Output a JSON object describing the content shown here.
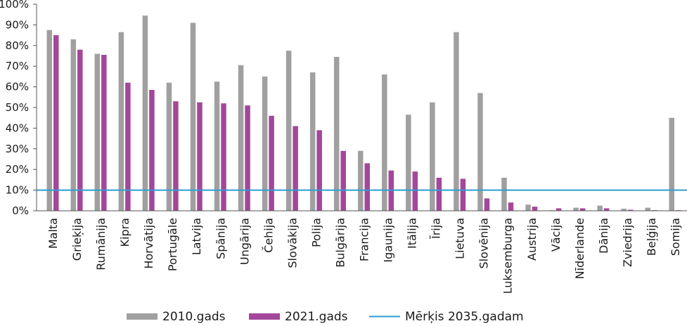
{
  "chart_data": {
    "type": "bar",
    "categories": [
      "Malta",
      "Grieķija",
      "Rumānija",
      "Kipra",
      "Horvātija",
      "Portugāle",
      "Latvija",
      "Spānija",
      "Ungārija",
      "Čehija",
      "Slovākija",
      "Polija",
      "Bulgārija",
      "Francija",
      "Igaunija",
      "Itālija",
      "Īrija",
      "Lietuva",
      "Slovēnija",
      "Luksemburga",
      "Austrija",
      "Vācija",
      "Nīderlande",
      "Dānija",
      "Zviedrija",
      "Beļģija",
      "Somija"
    ],
    "series": [
      {
        "name": "2010.gads",
        "color": "#a0a0a0",
        "values": [
          87.5,
          83,
          76,
          86.5,
          94.5,
          62,
          91,
          62.5,
          70.5,
          65,
          77.5,
          67,
          74.5,
          29,
          66,
          46.5,
          52.5,
          86.5,
          57,
          16,
          3,
          0.3,
          1.5,
          2.5,
          1,
          1.5,
          45
        ]
      },
      {
        "name": "2021.gads",
        "color": "#a3479a",
        "values": [
          85,
          78,
          75.5,
          62,
          58.5,
          53,
          52.5,
          52,
          51,
          46,
          41,
          39,
          29,
          23,
          19.5,
          19,
          16,
          15.5,
          6,
          4,
          2,
          1.2,
          1.2,
          1.2,
          0.5,
          0.3,
          0.3
        ]
      }
    ],
    "target": {
      "name": "Mērķis 2035.gadam",
      "value": 10,
      "color": "#2a9fd0"
    },
    "yticks": [
      "0%",
      "10%",
      "20%",
      "30%",
      "40%",
      "50%",
      "60%",
      "70%",
      "80%",
      "90%",
      "100%"
    ],
    "ylim": [
      0,
      100
    ],
    "legend_position": "bottom",
    "grid": false
  }
}
